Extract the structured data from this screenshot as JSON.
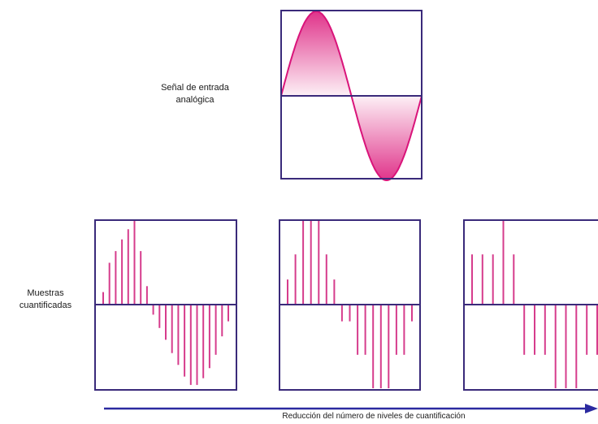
{
  "labels": {
    "analog_line1": "Señal de entrada",
    "analog_line2": "analógica",
    "samples_line1": "Muestras",
    "samples_line2": "cuantificadas",
    "axis": "Reducción del número de niveles de cuantificación"
  },
  "colors": {
    "frame": "#3a2a7a",
    "signal": "#d9147a",
    "fill_light": "#fbe3ef",
    "sample": "#d63c8c",
    "arrow": "#2b2aa0"
  },
  "waveform": "sine-one-period",
  "quantized_samples": [
    {
      "levels": "many",
      "values": [
        0.15,
        0.5,
        0.64,
        0.78,
        0.9,
        1.0,
        0.64,
        0.22,
        -0.12,
        -0.28,
        -0.42,
        -0.58,
        -0.72,
        -0.86,
        -0.96,
        -0.96,
        -0.88,
        -0.76,
        -0.6,
        -0.38,
        -0.2
      ]
    },
    {
      "levels": "medium",
      "values": [
        0.3,
        0.6,
        1.0,
        1.0,
        1.0,
        0.6,
        0.3,
        -0.2,
        -0.2,
        -0.6,
        -0.6,
        -1.0,
        -1.0,
        -1.0,
        -0.6,
        -0.6,
        -0.2
      ]
    },
    {
      "levels": "few",
      "values": [
        0.6,
        0.6,
        0.6,
        1.0,
        0.6,
        -0.6,
        -0.6,
        -0.6,
        -1.0,
        -1.0,
        -1.0,
        -0.6,
        -0.6
      ]
    }
  ]
}
